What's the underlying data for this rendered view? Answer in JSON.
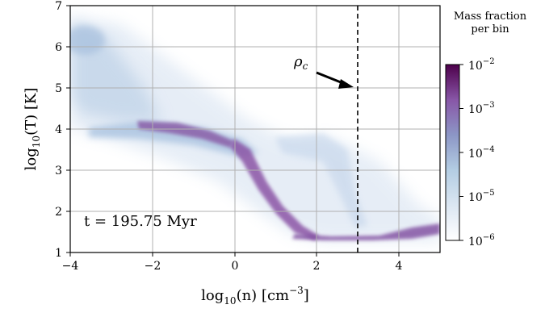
{
  "chart_data": {
    "type": "heatmap",
    "title": "",
    "xlabel": {
      "prefix": "log",
      "sub": "10",
      "mid": "(n) [cm",
      "sup": "−3",
      "suffix": "]"
    },
    "ylabel": {
      "prefix": "log",
      "sub": "10",
      "mid": "(T) [K]"
    },
    "xlim": [
      -4,
      5
    ],
    "ylim": [
      1,
      7
    ],
    "xticks": [
      -4,
      -2,
      0,
      2,
      4
    ],
    "xtick_labels": [
      "−4",
      "−2",
      "0",
      "2",
      "4"
    ],
    "yticks": [
      1,
      2,
      3,
      4,
      5,
      6,
      7
    ],
    "ytick_labels": [
      "1",
      "2",
      "3",
      "4",
      "5",
      "6",
      "7"
    ],
    "grid": true,
    "density_regions": [
      {
        "x": [
          -4.0,
          -3.0
        ],
        "y": [
          5.6,
          6.4
        ],
        "mass_fraction": 0.0003
      },
      {
        "x": [
          -3.0,
          -1.0
        ],
        "y": [
          4.3,
          6.0
        ],
        "mass_fraction": 3e-05
      },
      {
        "x": [
          -3.0,
          0.6
        ],
        "y": [
          3.5,
          4.1
        ],
        "mass_fraction": 0.002
      },
      {
        "x": [
          0.6,
          1.5
        ],
        "y": [
          2.6,
          3.6
        ],
        "mass_fraction": 0.002
      },
      {
        "x": [
          1.5,
          2.5
        ],
        "y": [
          1.4,
          2.0
        ],
        "mass_fraction": 0.004
      },
      {
        "x": [
          2.5,
          5.0
        ],
        "y": [
          1.3,
          1.7
        ],
        "mass_fraction": 0.001
      },
      {
        "x": [
          2.0,
          3.5
        ],
        "y": [
          2.0,
          4.0
        ],
        "mass_fraction": 2e-05
      }
    ],
    "vline": {
      "x": 3.0,
      "style": "dashed",
      "label": "ρ",
      "label_sub": "c"
    },
    "annotation_text": "t = 195.75 Myr",
    "colorbar": {
      "title_lines": [
        "Mass fraction",
        "per bin"
      ],
      "scale": "log",
      "range": [
        1e-06,
        0.01
      ],
      "ticks": [
        {
          "exp": "−2",
          "value": 0.01
        },
        {
          "exp": "−3",
          "value": 0.001
        },
        {
          "exp": "−4",
          "value": 0.0001
        },
        {
          "exp": "−5",
          "value": 1e-05
        },
        {
          "exp": "−6",
          "value": 1e-06
        }
      ],
      "tick_base": "10",
      "colors": [
        "#ffffff",
        "#b3cde3",
        "#8c96c6",
        "#8856a7",
        "#810f7c",
        "#4d004b"
      ]
    }
  }
}
